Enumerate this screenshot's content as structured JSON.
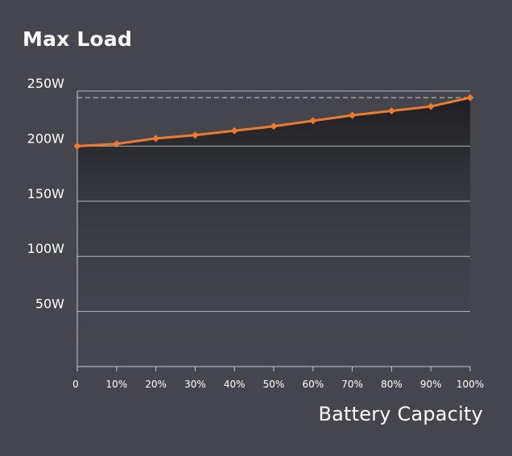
{
  "chart_data": {
    "type": "line",
    "title": "Max Load",
    "xlabel": "Battery Capacity",
    "ylabel": "",
    "categories": [
      "0",
      "10%",
      "20%",
      "30%",
      "40%",
      "50%",
      "60%",
      "70%",
      "80%",
      "90%",
      "100%"
    ],
    "series": [
      {
        "name": "Max Load",
        "values": [
          200,
          202,
          207,
          210,
          214,
          218,
          223,
          228,
          232,
          236,
          244
        ]
      }
    ],
    "reference_line": {
      "value": 244,
      "style": "dashed"
    },
    "y_ticks": [
      50,
      100,
      150,
      200,
      250
    ],
    "y_tick_labels": [
      "50W",
      "100W",
      "150W",
      "200W",
      "250W"
    ],
    "ylim": [
      0,
      250
    ],
    "grid": true,
    "colors": {
      "background": "#45464d",
      "line": "#ee7a2f",
      "grid": "#c9c9ce",
      "text": "#ffffff",
      "fill_top": "#1c1c20"
    }
  }
}
